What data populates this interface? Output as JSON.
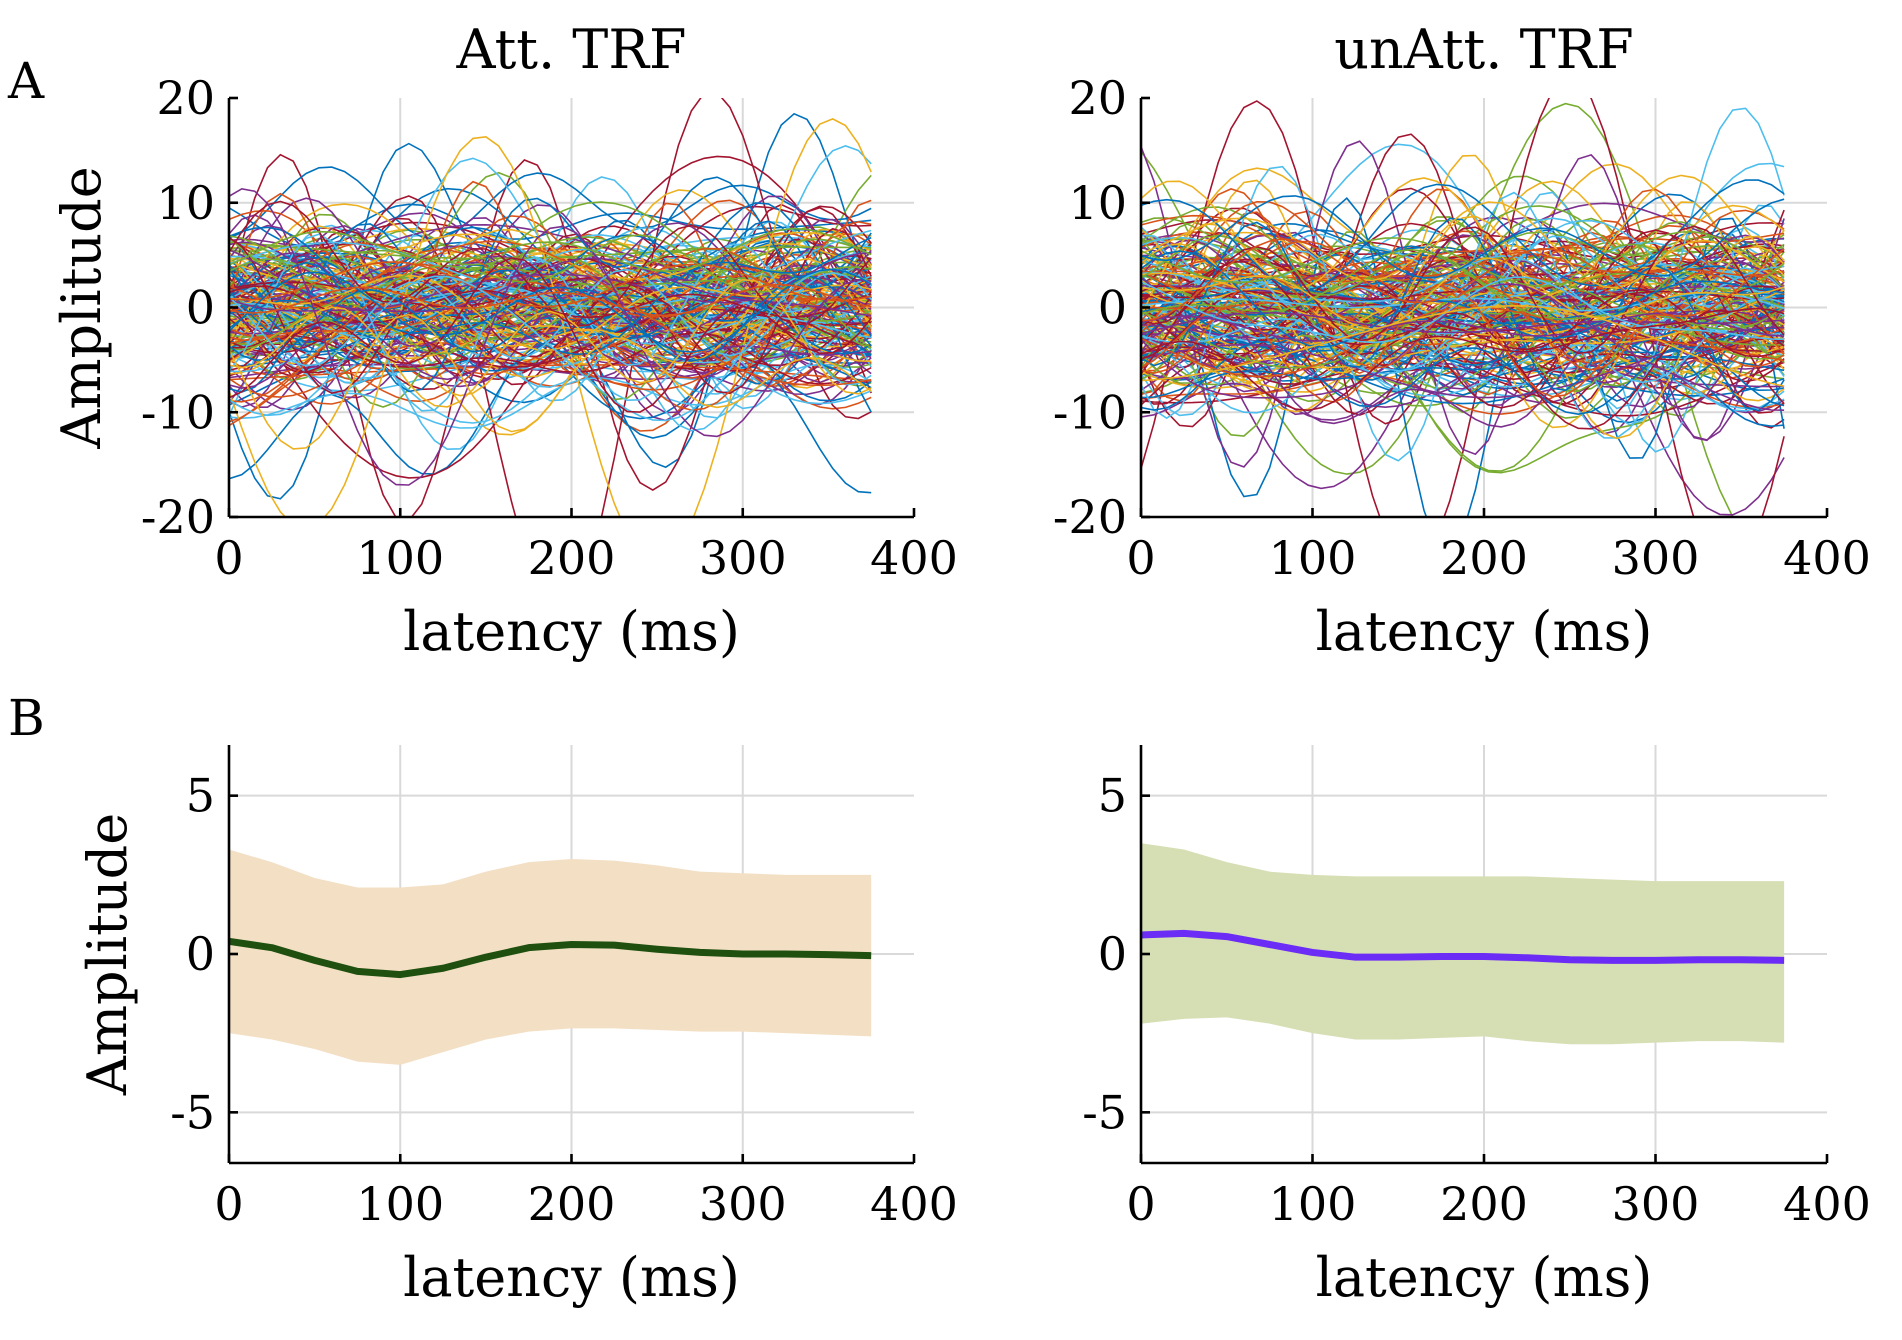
{
  "panel_labels": [
    "A",
    "B"
  ],
  "chart_data": [
    {
      "type": "line",
      "title": "Att. TRF",
      "xlabel": "latency (ms)",
      "ylabel": "Amplitude",
      "xlim": [
        0,
        400
      ],
      "ylim": [
        -20,
        20
      ],
      "xticks": [
        "0",
        "100",
        "200",
        "300",
        "400"
      ],
      "yticks": [
        "20",
        "10",
        "0",
        "-10",
        "-20"
      ],
      "grid": true,
      "legend": "none",
      "description_series": "many individual TRF traces, one per channel/subject, spanning 0–375 ms",
      "trace_count": 220,
      "x_end": 375,
      "typical_spread": 5.5
    },
    {
      "type": "line",
      "title": "unAtt. TRF",
      "xlabel": "latency (ms)",
      "ylabel": "",
      "xlim": [
        0,
        400
      ],
      "ylim": [
        -20,
        20
      ],
      "xticks": [
        "0",
        "100",
        "200",
        "300",
        "400"
      ],
      "yticks": [
        "20",
        "10",
        "0",
        "-10",
        "-20"
      ],
      "grid": true,
      "legend": "none",
      "trace_count": 220,
      "x_end": 375,
      "typical_spread": 5.5
    },
    {
      "type": "area",
      "title": "",
      "xlabel": "latency (ms)",
      "ylabel": "Amplitude",
      "xlim": [
        0,
        400
      ],
      "ylim": [
        -6.6,
        6.6
      ],
      "xticks": [
        "0",
        "100",
        "200",
        "300",
        "400"
      ],
      "yticks": [
        "5",
        "0",
        "-5"
      ],
      "grid": true,
      "legend": "none",
      "mean_color": "#1f5010",
      "band_color": "#f3dfc4",
      "x": [
        0,
        25,
        50,
        75,
        100,
        125,
        150,
        175,
        200,
        225,
        250,
        275,
        300,
        325,
        350,
        375
      ],
      "mean": [
        0.4,
        0.2,
        -0.2,
        -0.55,
        -0.65,
        -0.45,
        -0.1,
        0.2,
        0.3,
        0.28,
        0.15,
        0.05,
        0.0,
        0.0,
        -0.02,
        -0.05
      ],
      "upper": [
        3.3,
        2.9,
        2.4,
        2.1,
        2.1,
        2.2,
        2.6,
        2.9,
        3.0,
        2.95,
        2.8,
        2.6,
        2.55,
        2.5,
        2.5,
        2.5
      ],
      "lower": [
        -2.5,
        -2.7,
        -3.0,
        -3.4,
        -3.5,
        -3.1,
        -2.7,
        -2.45,
        -2.35,
        -2.35,
        -2.4,
        -2.45,
        -2.45,
        -2.5,
        -2.55,
        -2.6
      ]
    },
    {
      "type": "area",
      "title": "",
      "xlabel": "latency (ms)",
      "ylabel": "",
      "xlim": [
        0,
        400
      ],
      "ylim": [
        -6.6,
        6.6
      ],
      "xticks": [
        "0",
        "100",
        "200",
        "300",
        "400"
      ],
      "yticks": [
        "5",
        "0",
        "-5"
      ],
      "grid": true,
      "legend": "none",
      "mean_color": "#6b2cf5",
      "band_color": "#d6deb3",
      "x": [
        0,
        25,
        50,
        75,
        100,
        125,
        150,
        175,
        200,
        225,
        250,
        275,
        300,
        325,
        350,
        375
      ],
      "mean": [
        0.6,
        0.65,
        0.55,
        0.3,
        0.05,
        -0.1,
        -0.1,
        -0.08,
        -0.08,
        -0.12,
        -0.18,
        -0.2,
        -0.2,
        -0.18,
        -0.18,
        -0.2
      ],
      "upper": [
        3.5,
        3.3,
        2.9,
        2.6,
        2.5,
        2.45,
        2.45,
        2.45,
        2.45,
        2.45,
        2.4,
        2.35,
        2.3,
        2.3,
        2.3,
        2.3
      ],
      "lower": [
        -2.2,
        -2.05,
        -2.0,
        -2.2,
        -2.5,
        -2.7,
        -2.7,
        -2.65,
        -2.6,
        -2.75,
        -2.85,
        -2.85,
        -2.8,
        -2.75,
        -2.75,
        -2.8
      ]
    }
  ]
}
